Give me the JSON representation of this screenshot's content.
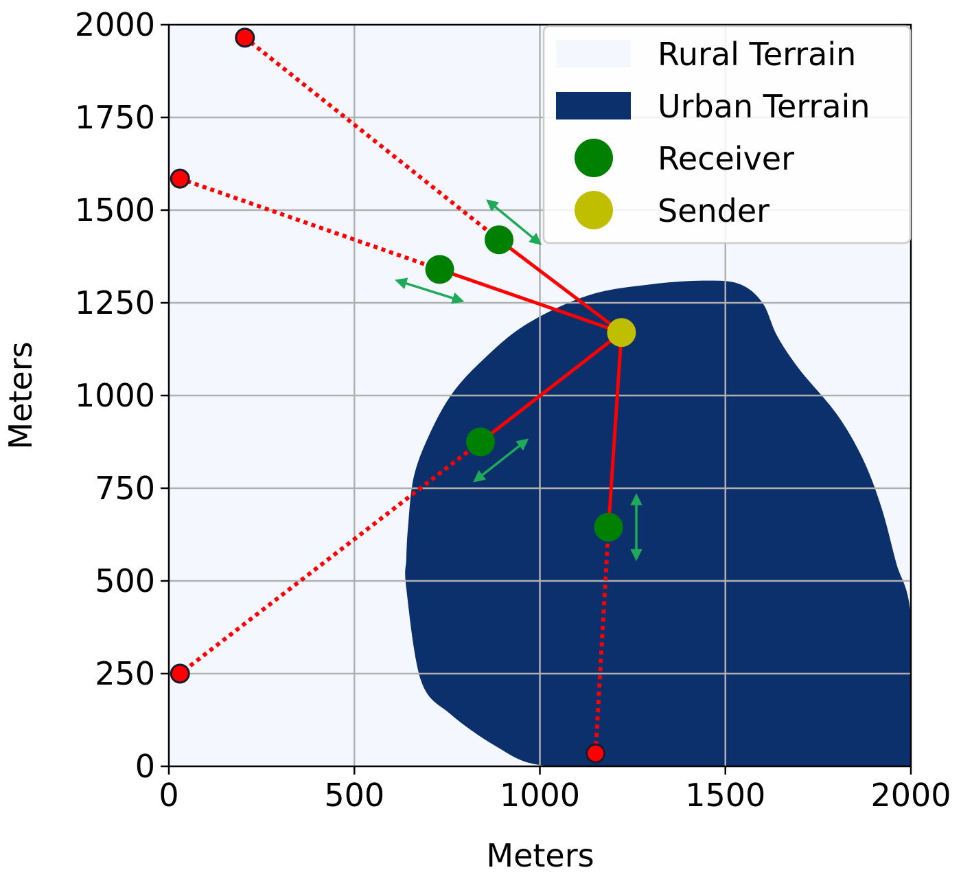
{
  "chart_data": {
    "type": "scatter",
    "title": "",
    "xlabel": "Meters",
    "ylabel": "Meters",
    "xlim": [
      0,
      2000
    ],
    "ylim": [
      0,
      2000
    ],
    "xticks": [
      0,
      500,
      1000,
      1500,
      2000
    ],
    "yticks": [
      0,
      250,
      500,
      750,
      1000,
      1250,
      1500,
      1750,
      2000
    ],
    "xtick_labels": [
      "0",
      "500",
      "1000",
      "1500",
      "2000"
    ],
    "ytick_labels": [
      "0",
      "250",
      "500",
      "750",
      "1000",
      "1250",
      "1500",
      "1750",
      "2000"
    ],
    "grid": true,
    "legend_position": "top-right",
    "legend": [
      {
        "label": "Rural Terrain",
        "kind": "patch",
        "color": "#f4f8fe"
      },
      {
        "label": "Urban Terrain",
        "kind": "patch",
        "color": "#0b306b"
      },
      {
        "label": "Receiver",
        "kind": "marker",
        "color": "#008000"
      },
      {
        "label": "Sender",
        "kind": "marker",
        "color": "#bfbf00"
      }
    ],
    "colors": {
      "rural": "#f4f8fe",
      "urban": "#0b306b",
      "receiver": "#008000",
      "sender": "#bfbf00",
      "endpoint": "#ff0000",
      "link": "#ff0000",
      "motion_arrow": "#1faa59",
      "grid": "#b0b0b0"
    },
    "urban_region_outline": [
      [
        640,
        480
      ],
      [
        680,
        230
      ],
      [
        760,
        140
      ],
      [
        880,
        55
      ],
      [
        990,
        5
      ],
      [
        1180,
        0
      ],
      [
        1500,
        0
      ],
      [
        2000,
        0
      ],
      [
        2000,
        400
      ],
      [
        1960,
        550
      ],
      [
        1920,
        700
      ],
      [
        1870,
        830
      ],
      [
        1800,
        950
      ],
      [
        1700,
        1070
      ],
      [
        1640,
        1160
      ],
      [
        1600,
        1250
      ],
      [
        1540,
        1300
      ],
      [
        1450,
        1310
      ],
      [
        1300,
        1300
      ],
      [
        1130,
        1270
      ],
      [
        960,
        1190
      ],
      [
        840,
        1090
      ],
      [
        760,
        1000
      ],
      [
        700,
        890
      ],
      [
        660,
        780
      ],
      [
        645,
        650
      ],
      [
        640,
        560
      ]
    ],
    "sender": {
      "x": 1220,
      "y": 1170
    },
    "receivers": [
      {
        "x": 890,
        "y": 1420
      },
      {
        "x": 730,
        "y": 1340
      },
      {
        "x": 840,
        "y": 875
      },
      {
        "x": 1185,
        "y": 645
      }
    ],
    "endpoints": [
      {
        "x": 205,
        "y": 1965
      },
      {
        "x": 30,
        "y": 1585
      },
      {
        "x": 30,
        "y": 250
      },
      {
        "x": 1150,
        "y": 35
      }
    ],
    "motion_arrows": [
      {
        "x1": 860,
        "y1": 1525,
        "x2": 1000,
        "y2": 1410
      },
      {
        "x1": 615,
        "y1": 1310,
        "x2": 790,
        "y2": 1255
      },
      {
        "x1": 825,
        "y1": 770,
        "x2": 965,
        "y2": 880
      },
      {
        "x1": 1260,
        "y1": 560,
        "x2": 1260,
        "y2": 730
      }
    ]
  }
}
